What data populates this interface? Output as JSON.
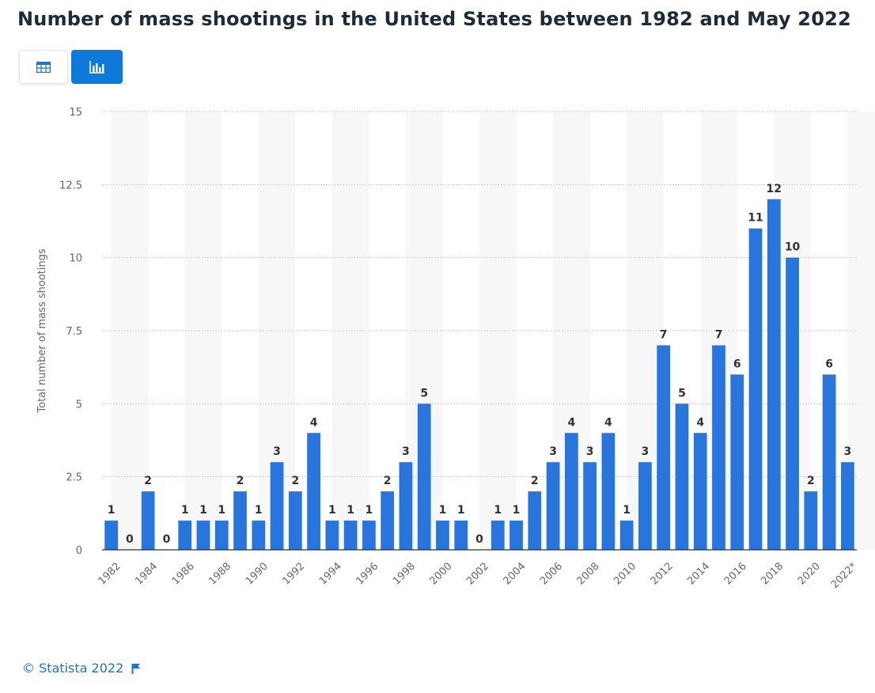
{
  "header": {
    "title": "Number of mass shootings in the United States between 1982 and May 2022"
  },
  "toolbar": {
    "table_icon": "table-icon",
    "chart_icon": "bar-chart-icon",
    "active": "chart"
  },
  "footer": {
    "copyright": "© Statista 2022",
    "icon": "flag-icon"
  },
  "colors": {
    "bar": "#2876dd",
    "title": "#1c2b39",
    "accent": "#0d7ad9",
    "link": "#1d74c9"
  },
  "chart_data": {
    "type": "bar",
    "title": "Number of mass shootings in the United States between 1982 and May 2022",
    "ylabel": "Total number of mass shootings",
    "xlabel": "",
    "ylim": [
      0,
      15
    ],
    "yticks": [
      "0",
      "2.5",
      "5",
      "7.5",
      "10",
      "12.5",
      "15"
    ],
    "grid": true,
    "categories": [
      "1982",
      "1983",
      "1984",
      "1985",
      "1986",
      "1987",
      "1988",
      "1989",
      "1990",
      "1991",
      "1992",
      "1993",
      "1994",
      "1995",
      "1996",
      "1997",
      "1998",
      "1999",
      "2000",
      "2001",
      "2002",
      "2003",
      "2004",
      "2005",
      "2006",
      "2007",
      "2008",
      "2009",
      "2010",
      "2011",
      "2012",
      "2013",
      "2014",
      "2015",
      "2016",
      "2017",
      "2018",
      "2019",
      "2020",
      "2021",
      "2022*"
    ],
    "x_tick_labels": [
      "1982",
      "1984",
      "1986",
      "1988",
      "1990",
      "1992",
      "1994",
      "1996",
      "1998",
      "2000",
      "2002",
      "2004",
      "2006",
      "2008",
      "2010",
      "2012",
      "2014",
      "2016",
      "2018",
      "2020",
      "2022*"
    ],
    "values": [
      1,
      0,
      2,
      0,
      1,
      1,
      1,
      2,
      1,
      3,
      2,
      4,
      1,
      1,
      1,
      2,
      3,
      5,
      1,
      1,
      0,
      1,
      1,
      2,
      3,
      4,
      3,
      4,
      1,
      3,
      7,
      5,
      4,
      7,
      6,
      11,
      12,
      10,
      2,
      6,
      3
    ]
  }
}
